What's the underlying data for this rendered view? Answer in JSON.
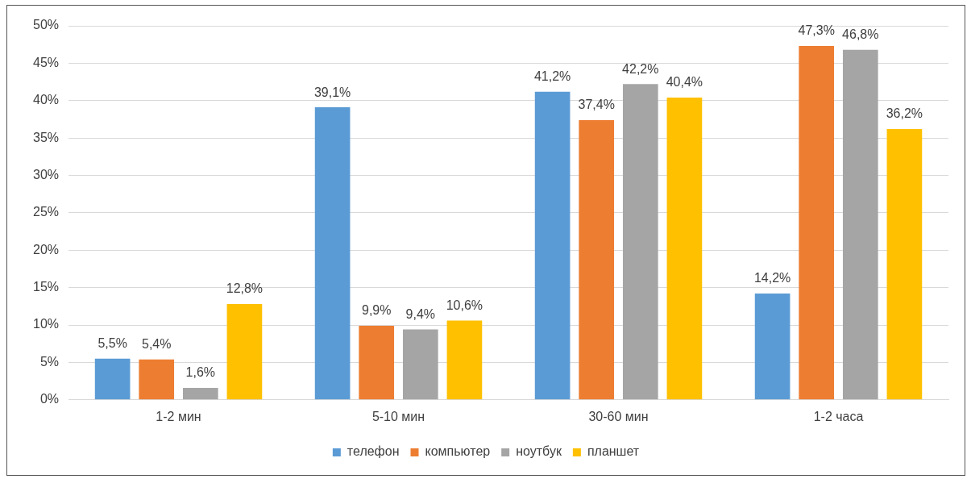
{
  "chart_data": {
    "type": "bar",
    "categories": [
      "1-2 мин",
      "5-10 мин",
      "30-60 мин",
      "1-2 часа"
    ],
    "series": [
      {
        "name": "телефон",
        "color": "#5b9bd5",
        "values": [
          5.5,
          39.1,
          41.2,
          14.2
        ],
        "value_labels": [
          "5,5%",
          "39,1%",
          "41,2%",
          "14,2%"
        ]
      },
      {
        "name": "компьютер",
        "color": "#ed7d31",
        "values": [
          5.4,
          9.9,
          37.4,
          47.3
        ],
        "value_labels": [
          "5,4%",
          "9,9%",
          "37,4%",
          "47,3%"
        ]
      },
      {
        "name": "ноутбук",
        "color": "#a5a5a5",
        "values": [
          1.6,
          9.4,
          42.2,
          46.8
        ],
        "value_labels": [
          "1,6%",
          "9,4%",
          "42,2%",
          "46,8%"
        ]
      },
      {
        "name": "планшет",
        "color": "#ffc000",
        "values": [
          12.8,
          10.6,
          40.4,
          36.2
        ],
        "value_labels": [
          "12,8%",
          "10,6%",
          "40,4%",
          "36,2%"
        ]
      }
    ],
    "ylim": [
      0,
      50
    ],
    "yticks": [
      {
        "value": 0,
        "label": "0%"
      },
      {
        "value": 5,
        "label": "5%"
      },
      {
        "value": 10,
        "label": "10%"
      },
      {
        "value": 15,
        "label": "15%"
      },
      {
        "value": 20,
        "label": "20%"
      },
      {
        "value": 25,
        "label": "25%"
      },
      {
        "value": 30,
        "label": "30%"
      },
      {
        "value": 35,
        "label": "35%"
      },
      {
        "value": 40,
        "label": "40%"
      },
      {
        "value": 45,
        "label": "45%"
      },
      {
        "value": 50,
        "label": "50%"
      }
    ],
    "grid": "y",
    "legend": "bottom"
  }
}
